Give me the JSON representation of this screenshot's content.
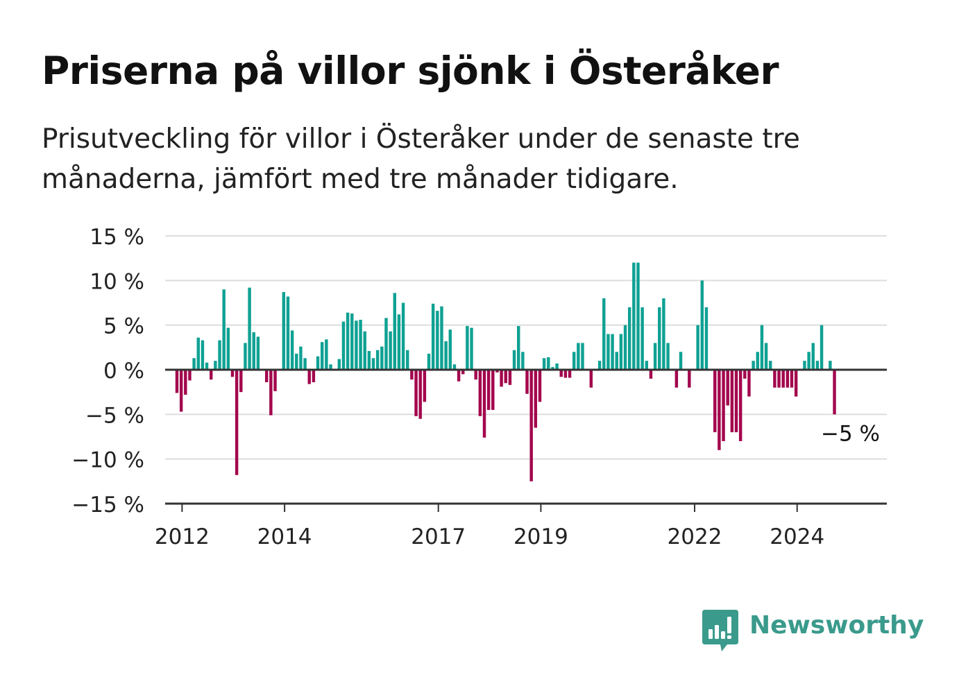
{
  "title": "Priserna på villor sjönk i Österåker",
  "subtitle": "Prisutveckling för villor i Österåker under de senaste tre månaderna, jämfört med tre månader tidigare.",
  "branding": {
    "logo_text": "Newsworthy",
    "logo_icon": "bar-chart-speech-bubble-icon"
  },
  "colors": {
    "positive": "#0fa193",
    "negative": "#a3064d",
    "grid": "#dddddd",
    "axis": "#333333",
    "text": "#222222",
    "logo": "#3a9a8c"
  },
  "chart_data": {
    "type": "bar",
    "title": "Priserna på villor sjönk i Österåker",
    "ylim": [
      -15,
      15
    ],
    "yticks": [
      15,
      10,
      5,
      0,
      -5,
      -10,
      -15
    ],
    "ytick_labels": [
      "15 %",
      "10 %",
      "5 %",
      "0 %",
      "−5 %",
      "−10 %",
      "−15 %"
    ],
    "x_range": [
      2011.67,
      2025.75
    ],
    "xtick_values": [
      2012,
      2014,
      2017,
      2019,
      2022,
      2024
    ],
    "xtick_labels": [
      "2012",
      "2014",
      "2017",
      "2019",
      "2022",
      "2024"
    ],
    "grid": true,
    "x_start": 2011.9,
    "x_step": 0.0833,
    "values": [
      -2.6,
      -4.7,
      -2.8,
      -1.2,
      1.3,
      3.6,
      3.3,
      0.8,
      -1.1,
      1.0,
      3.3,
      9.0,
      4.7,
      -0.8,
      -11.8,
      -2.5,
      3.0,
      9.2,
      4.2,
      3.7,
      0.0,
      -1.4,
      -5.1,
      -2.4,
      0.0,
      8.7,
      8.2,
      4.4,
      1.8,
      2.6,
      1.3,
      -1.6,
      -1.4,
      1.5,
      3.1,
      3.4,
      0.6,
      0.0,
      1.2,
      5.4,
      6.4,
      6.3,
      5.5,
      5.6,
      4.3,
      2.1,
      1.3,
      2.2,
      2.6,
      5.8,
      4.3,
      8.6,
      6.2,
      7.5,
      2.2,
      -1.1,
      -5.2,
      -5.5,
      -3.6,
      1.8,
      7.4,
      6.6,
      7.1,
      3.2,
      4.5,
      0.6,
      -1.3,
      -0.5,
      4.9,
      4.7,
      -1.1,
      -5.2,
      -7.6,
      -4.5,
      -4.5,
      -0.3,
      -1.9,
      -1.5,
      -1.7,
      2.2,
      4.9,
      2.0,
      -2.7,
      -12.5,
      -6.5,
      -3.6,
      1.3,
      1.4,
      0.3,
      0.7,
      -0.8,
      -0.9,
      -0.9,
      2.0,
      3.0,
      3.0,
      0.0,
      -2.0,
      0.0,
      1.0,
      8.0,
      4.0,
      4.0,
      2.0,
      4.0,
      5.0,
      7.0,
      12.0,
      12.0,
      7.0,
      1.0,
      -1.0,
      3.0,
      7.0,
      8.0,
      3.0,
      0.0,
      -2.0,
      2.0,
      0.0,
      -2.0,
      0.0,
      5.0,
      10.0,
      7.0,
      0.0,
      -7.0,
      -9.0,
      -8.0,
      -4.0,
      -7.0,
      -7.0,
      -8.0,
      -1.0,
      -3.0,
      1.0,
      2.0,
      5.0,
      3.0,
      1.0,
      -2.0,
      -2.0,
      -2.0,
      -2.0,
      -2.0,
      -3.0,
      0.0,
      1.0,
      2.0,
      3.0,
      1.0,
      5.0,
      0.0,
      1.0,
      -5.0
    ],
    "annotation": {
      "label": "−5 %",
      "value": -5
    }
  }
}
